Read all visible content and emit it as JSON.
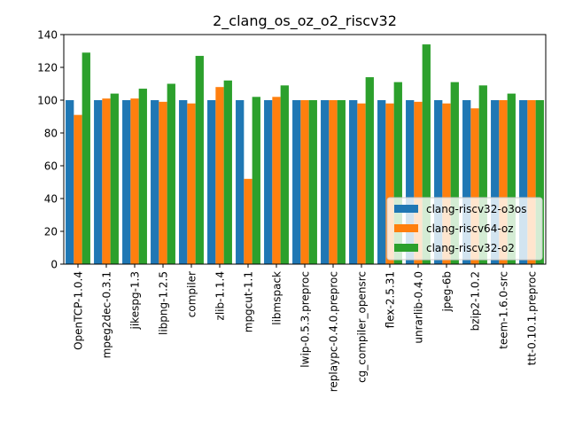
{
  "chart_data": {
    "type": "bar",
    "title": "2_clang_os_oz_o2_riscv32",
    "xlabel": "",
    "ylabel": "",
    "ylim": [
      0,
      140
    ],
    "yticks": [
      0,
      20,
      40,
      60,
      80,
      100,
      120,
      140
    ],
    "grid": false,
    "legend_position": "lower-right",
    "categories": [
      "OpenTCP-1.0.4",
      "mpeg2dec-0.3.1",
      "jikespg-1.3",
      "libpng-1.2.5",
      "compiler",
      "zlib-1.1.4",
      "mpgcut-1.1",
      "libmspack",
      "lwip-0.5.3.preproc",
      "replaypc-0.4.0.preproc",
      "cg_compiler_opensrc",
      "flex-2.5.31",
      "unrarlib-0.4.0",
      "jpeg-6b",
      "bzip2-1.0.2",
      "teem-1.6.0-src",
      "ttt-0.10.1.preproc"
    ],
    "series": [
      {
        "name": "clang-riscv32-o3os",
        "color": "#1f77b4",
        "values": [
          100,
          100,
          100,
          100,
          100,
          100,
          100,
          100,
          100,
          100,
          100,
          100,
          100,
          100,
          100,
          100,
          100
        ]
      },
      {
        "name": "clang-riscv64-oz",
        "color": "#ff7f0e",
        "values": [
          91,
          101,
          101,
          99,
          98,
          108,
          52,
          102,
          100,
          100,
          98,
          98,
          99,
          98,
          95,
          100,
          100
        ]
      },
      {
        "name": "clang-riscv32-o2",
        "color": "#2ca02c",
        "values": [
          129,
          104,
          107,
          110,
          127,
          112,
          102,
          109,
          100,
          100,
          114,
          111,
          134,
          111,
          109,
          104,
          100
        ]
      }
    ]
  }
}
